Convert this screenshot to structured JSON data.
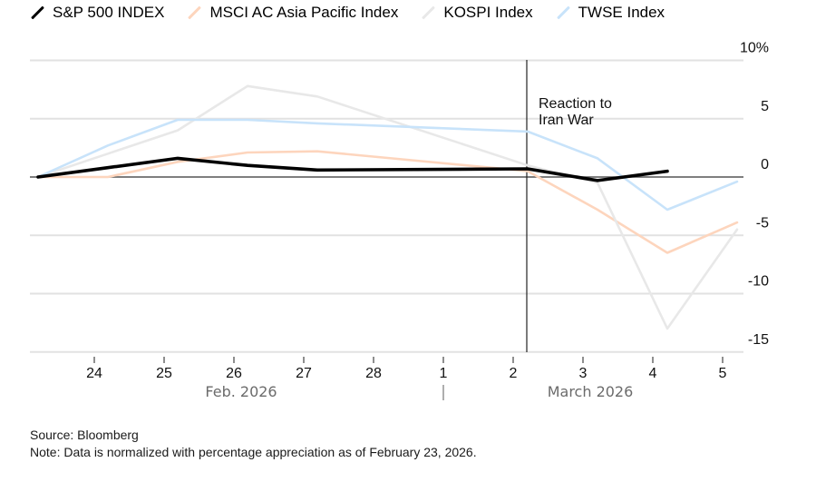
{
  "chart_data": {
    "type": "line",
    "title": "",
    "xlabel": "",
    "ylabel": "",
    "ylim": [
      -15,
      10
    ],
    "y_ticks": [
      10,
      5,
      0,
      -5,
      -10,
      -15
    ],
    "y_tick_labels": [
      "10%",
      "5",
      "0",
      "-5",
      "-10",
      "-15"
    ],
    "x": [
      "Feb 23",
      "Feb 24",
      "Feb 25",
      "Feb 26",
      "Feb 27",
      "Mar 2",
      "Mar 3",
      "Mar 4",
      "Mar 5"
    ],
    "x_ticks": [
      "24",
      "25",
      "26",
      "27",
      "28",
      "1",
      "2",
      "3",
      "4",
      "5"
    ],
    "month_labels": [
      "Feb. 2026",
      "March 2026"
    ],
    "month_separator": "|",
    "grid": true,
    "legend_position": "top-left",
    "annotation": {
      "text_line1": "Reaction to",
      "text_line2": "Iran War",
      "at": "Mar 2"
    },
    "series": [
      {
        "name": "MSCI AC Asia Pacific Index",
        "color": "#fdd5bd",
        "values": [
          0,
          0,
          1.3,
          2.1,
          2.2,
          0.5,
          -2.8,
          -6.5,
          -3.9
        ]
      },
      {
        "name": "KOSPI Index",
        "color": "#e8e8e8",
        "values": [
          0,
          2.0,
          4.0,
          7.8,
          6.9,
          1.0,
          -0.5,
          -13.0,
          -4.5
        ]
      },
      {
        "name": "TWSE Index",
        "color": "#c8e3fa",
        "values": [
          0,
          2.7,
          4.9,
          4.9,
          4.6,
          3.9,
          1.6,
          -2.8,
          -0.4
        ]
      },
      {
        "name": "S&P 500 INDEX",
        "color": "#000000",
        "values": [
          0,
          0.8,
          1.6,
          1.0,
          0.6,
          0.7,
          -0.3,
          0.5,
          null
        ]
      }
    ],
    "legend": [
      {
        "name": "S&P 500 INDEX",
        "color": "#000000"
      },
      {
        "name": "MSCI AC Asia Pacific Index",
        "color": "#fdd5bd"
      },
      {
        "name": "KOSPI Index",
        "color": "#e8e8e8"
      },
      {
        "name": "TWSE Index",
        "color": "#c8e3fa"
      }
    ]
  },
  "footer": {
    "source": "Source: Bloomberg",
    "note": "Note: Data is normalized with percentage appreciation as of February 23, 2026."
  }
}
